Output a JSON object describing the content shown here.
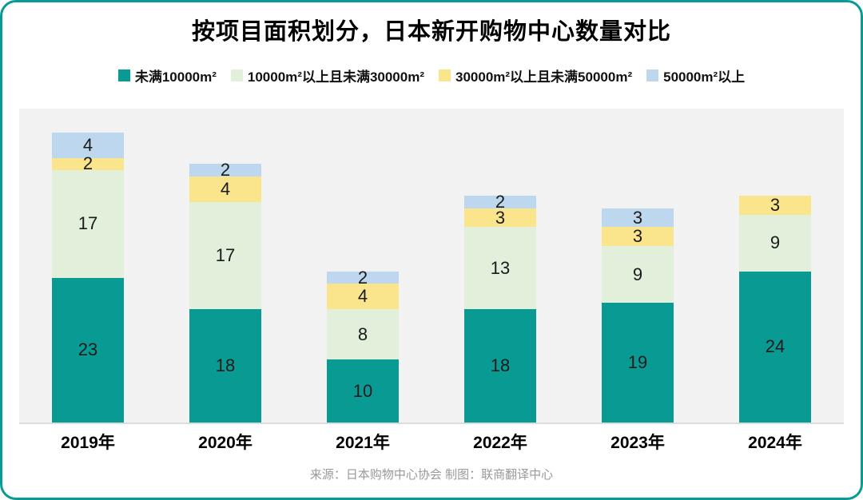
{
  "title": "按项目面积划分，日本新开购物中心数量对比",
  "source_note": "来源：日本购物中心协会  制图：联商翻译中心",
  "colors": {
    "card_border": "#0a9a94",
    "plot_background": "#f2f2f2",
    "axis_line": "#dcdcdc",
    "label_text": "#1a1a1a",
    "source_text": "#999999"
  },
  "chart_data": {
    "type": "bar",
    "stacked": true,
    "title": "按项目面积划分，日本新开购物中心数量对比",
    "categories": [
      "2019年",
      "2020年",
      "2021年",
      "2022年",
      "2023年",
      "2024年"
    ],
    "series": [
      {
        "name": "未满10000m²",
        "color": "#0a9a94",
        "values": [
          23,
          18,
          10,
          18,
          19,
          24
        ]
      },
      {
        "name": "10000m²以上且未满30000m²",
        "color": "#e2efdb",
        "values": [
          17,
          17,
          8,
          13,
          9,
          9
        ]
      },
      {
        "name": "30000m²以上且未满50000m²",
        "color": "#fae58c",
        "values": [
          2,
          4,
          4,
          3,
          3,
          3
        ]
      },
      {
        "name": "50000m²以上",
        "color": "#bdd7ee",
        "values": [
          4,
          2,
          2,
          2,
          3,
          0
        ]
      }
    ],
    "totals": [
      46,
      41,
      24,
      36,
      34,
      36
    ],
    "value_labels": true,
    "legend_position": "top",
    "grid": false,
    "ylim": [
      0,
      46
    ]
  }
}
